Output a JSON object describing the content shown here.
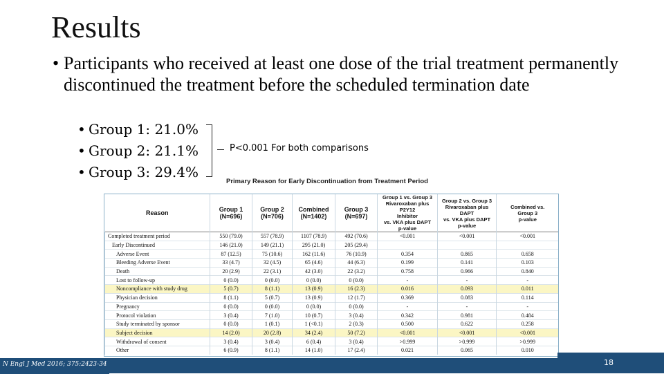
{
  "slide": {
    "title": "Results",
    "bullet": "Participants who received at least one dose of the trial treatment permanently discontinued the treatment before the scheduled termination date",
    "groups": [
      "Group 1: 21.0%",
      "Group 2: 21.1%",
      "Group 3: 29.4%"
    ],
    "pvalue_note": "P<0.001 For both comparisons"
  },
  "table": {
    "title": "Primary Reason for Early Discontinuation from Treatment Period",
    "headers": {
      "reason": "Reason",
      "g1": "Group 1\n(N=696)",
      "g2": "Group 2\n(N=706)",
      "combined": "Combined\n(N=1402)",
      "g3": "Group 3\n(N=697)",
      "p13": "Group 1 vs. Group 3\nRivaroxaban plus P2Y12\nInhibitor\nvs. VKA plus DAPT\np-value",
      "p23": "Group 2 vs. Group 3\nRivaroxaban plus DAPT\nvs. VKA plus DAPT\np-value",
      "pc3": "Combined vs.\nGroup 3\np-value"
    },
    "rows": [
      {
        "reason": "Completed treatment period",
        "g1": "550 (79.0)",
        "g2": "557 (78.9)",
        "combined": "1107 (78.9)",
        "g3": "492 (70.6)",
        "p13": "<0.001",
        "p23": "<0.001",
        "pc3": "<0.001",
        "indent": 0,
        "hl": false
      },
      {
        "reason": "Early Discontinued",
        "g1": "146 (21.0)",
        "g2": "149 (21.1)",
        "combined": "295 (21.0)",
        "g3": "205 (29.4)",
        "p13": "",
        "p23": "",
        "pc3": "",
        "indent": 1,
        "hl": false
      },
      {
        "reason": "Adverse Event",
        "g1": "87 (12.5)",
        "g2": "75 (10.6)",
        "combined": "162 (11.6)",
        "g3": "76 (10.9)",
        "p13": "0.354",
        "p23": "0.865",
        "pc3": "0.658",
        "indent": 2,
        "hl": false
      },
      {
        "reason": "Bleeding Adverse Event",
        "g1": "33 (4.7)",
        "g2": "32 (4.5)",
        "combined": "65 (4.6)",
        "g3": "44 (6.3)",
        "p13": "0.199",
        "p23": "0.141",
        "pc3": "0.103",
        "indent": 2,
        "hl": false
      },
      {
        "reason": "Death",
        "g1": "20 (2.9)",
        "g2": "22 (3.1)",
        "combined": "42 (3.0)",
        "g3": "22 (3.2)",
        "p13": "0.758",
        "p23": "0.966",
        "pc3": "0.840",
        "indent": 2,
        "hl": false
      },
      {
        "reason": "Lost to follow-up",
        "g1": "0 (0.0)",
        "g2": "0 (0.0)",
        "combined": "0 (0.0)",
        "g3": "0 (0.0)",
        "p13": "-",
        "p23": "-",
        "pc3": "-",
        "indent": 2,
        "hl": false
      },
      {
        "reason": "Noncompliance with study drug",
        "g1": "5 (0.7)",
        "g2": "8 (1.1)",
        "combined": "13 (0.9)",
        "g3": "16 (2.3)",
        "p13": "0.016",
        "p23": "0.093",
        "pc3": "0.011",
        "indent": 2,
        "hl": true
      },
      {
        "reason": "Physician decision",
        "g1": "8 (1.1)",
        "g2": "5 (0.7)",
        "combined": "13 (0.9)",
        "g3": "12 (1.7)",
        "p13": "0.369",
        "p23": "0.083",
        "pc3": "0.114",
        "indent": 2,
        "hl": false
      },
      {
        "reason": "Pregnancy",
        "g1": "0 (0.0)",
        "g2": "0 (0.0)",
        "combined": "0 (0.0)",
        "g3": "0 (0.0)",
        "p13": "-",
        "p23": "-",
        "pc3": "-",
        "indent": 2,
        "hl": false
      },
      {
        "reason": "Protocol violation",
        "g1": "3 (0.4)",
        "g2": "7 (1.0)",
        "combined": "10 (0.7)",
        "g3": "3 (0.4)",
        "p13": "0.342",
        "p23": "0.981",
        "pc3": "0.484",
        "indent": 2,
        "hl": false
      },
      {
        "reason": "Study terminated by sponsor",
        "g1": "0 (0.0)",
        "g2": "1 (0.1)",
        "combined": "1 (<0.1)",
        "g3": "2 (0.3)",
        "p13": "0.500",
        "p23": "0.622",
        "pc3": "0.258",
        "indent": 2,
        "hl": false
      },
      {
        "reason": "Subject decision",
        "g1": "14 (2.0)",
        "g2": "20 (2.8)",
        "combined": "34 (2.4)",
        "g3": "50 (7.2)",
        "p13": "<0.001",
        "p23": "<0.001",
        "pc3": "<0.001",
        "indent": 2,
        "hl": true
      },
      {
        "reason": "Withdrawal of consent",
        "g1": "3 (0.4)",
        "g2": "3 (0.4)",
        "combined": "6 (0.4)",
        "g3": "3 (0.4)",
        "p13": ">0.999",
        "p23": ">0.999",
        "pc3": ">0.999",
        "indent": 2,
        "hl": false
      },
      {
        "reason": "Other",
        "g1": "6 (0.9)",
        "g2": "8 (1.1)",
        "combined": "14 (1.0)",
        "g3": "17 (2.4)",
        "p13": "0.021",
        "p23": "0.065",
        "pc3": "0.010",
        "indent": 2,
        "hl": false
      }
    ]
  },
  "footer": {
    "citation": "N Engl J Med 2016; 375:2423-34",
    "page_number": "18"
  },
  "colors": {
    "footer_bar": "#1f4e79",
    "highlight_row": "#fbf6c4"
  }
}
